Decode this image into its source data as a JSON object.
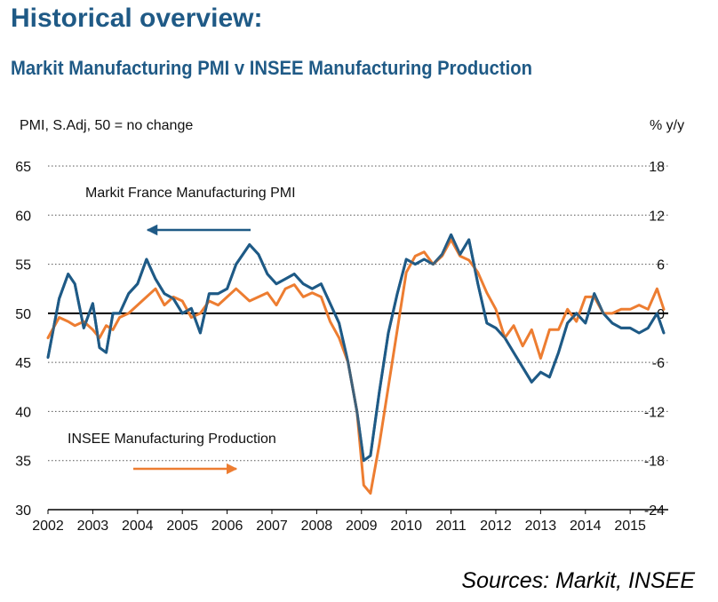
{
  "header": {
    "title": "Historical overview:",
    "subtitle": "Markit Manufacturing PMI v INSEE Manufacturing Production"
  },
  "source": "Sources: Markit, INSEE",
  "colors": {
    "pmi": "#1f5a86",
    "production": "#ed7d31",
    "zero_line": "#000000",
    "grid": "#555555"
  },
  "chart_data": {
    "type": "line",
    "title": "Markit Manufacturing PMI v INSEE Manufacturing Production",
    "left_axis_label": "PMI, S.Adj, 50 = no change",
    "right_axis_label": "% y/y",
    "x_ticks": [
      "2002",
      "2003",
      "2004",
      "2005",
      "2006",
      "2007",
      "2008",
      "2009",
      "2010",
      "2011",
      "2012",
      "2013",
      "2014",
      "2015"
    ],
    "xlim": [
      2002,
      2015.85
    ],
    "y_left": {
      "ylim": [
        30,
        65
      ],
      "ticks": [
        "65",
        "60",
        "55",
        "50",
        "45",
        "40",
        "35",
        "30"
      ]
    },
    "y_right": {
      "ylim": [
        -24,
        18
      ],
      "ticks": [
        "18",
        "12",
        "6",
        "0",
        "-6",
        "-12",
        "-18",
        "-24"
      ]
    },
    "grid": "horizontal dotted",
    "series": [
      {
        "name": "Markit France Manufacturing PMI",
        "axis": "left",
        "arrow": "left",
        "x": [
          2002.0,
          2002.25,
          2002.45,
          2002.6,
          2002.8,
          2003.0,
          2003.15,
          2003.3,
          2003.45,
          2003.6,
          2003.8,
          2004.0,
          2004.2,
          2004.4,
          2004.6,
          2004.8,
          2005.0,
          2005.2,
          2005.4,
          2005.6,
          2005.8,
          2006.0,
          2006.2,
          2006.5,
          2006.7,
          2006.9,
          2007.1,
          2007.3,
          2007.5,
          2007.7,
          2007.9,
          2008.1,
          2008.3,
          2008.5,
          2008.7,
          2008.9,
          2009.05,
          2009.2,
          2009.4,
          2009.6,
          2009.8,
          2010.0,
          2010.2,
          2010.4,
          2010.6,
          2010.8,
          2011.0,
          2011.2,
          2011.4,
          2011.6,
          2011.8,
          2012.0,
          2012.2,
          2012.4,
          2012.6,
          2012.8,
          2013.0,
          2013.2,
          2013.4,
          2013.6,
          2013.8,
          2014.0,
          2014.2,
          2014.4,
          2014.6,
          2014.8,
          2015.0,
          2015.2,
          2015.4,
          2015.6,
          2015.75
        ],
        "values": [
          45.5,
          51.5,
          54.0,
          53.0,
          48.5,
          51.0,
          46.5,
          46.0,
          50.0,
          50.0,
          52.0,
          53.0,
          55.5,
          53.5,
          52.0,
          51.5,
          50.0,
          50.5,
          48.0,
          52.0,
          52.0,
          52.5,
          55.0,
          57.0,
          56.0,
          54.0,
          53.0,
          53.5,
          54.0,
          53.0,
          52.5,
          53.0,
          51.0,
          49.0,
          45.0,
          40.0,
          35.0,
          35.5,
          42.0,
          48.0,
          52.0,
          55.5,
          55.0,
          55.5,
          55.0,
          56.0,
          58.0,
          56.0,
          57.5,
          53.0,
          49.0,
          48.5,
          47.5,
          46.0,
          44.5,
          43.0,
          44.0,
          43.5,
          46.0,
          49.0,
          50.0,
          49.0,
          52.0,
          50.0,
          49.0,
          48.5,
          48.5,
          48.0,
          48.5,
          50.0,
          48.0
        ]
      },
      {
        "name": "INSEE Manufacturing Production",
        "axis": "right",
        "arrow": "right",
        "x": [
          2002.0,
          2002.25,
          2002.45,
          2002.6,
          2002.8,
          2003.0,
          2003.15,
          2003.3,
          2003.45,
          2003.6,
          2003.8,
          2004.0,
          2004.2,
          2004.4,
          2004.6,
          2004.8,
          2005.0,
          2005.2,
          2005.4,
          2005.6,
          2005.8,
          2006.0,
          2006.2,
          2006.5,
          2006.7,
          2006.9,
          2007.1,
          2007.3,
          2007.5,
          2007.7,
          2007.9,
          2008.1,
          2008.3,
          2008.5,
          2008.7,
          2008.9,
          2009.05,
          2009.2,
          2009.4,
          2009.6,
          2009.8,
          2010.0,
          2010.2,
          2010.4,
          2010.6,
          2010.8,
          2011.0,
          2011.2,
          2011.4,
          2011.6,
          2011.8,
          2012.0,
          2012.2,
          2012.4,
          2012.6,
          2012.8,
          2013.0,
          2013.2,
          2013.4,
          2013.6,
          2013.8,
          2014.0,
          2014.2,
          2014.4,
          2014.6,
          2014.8,
          2015.0,
          2015.2,
          2015.4,
          2015.6,
          2015.75
        ],
        "values": [
          -3.0,
          -0.5,
          -1.0,
          -1.5,
          -1.0,
          -2.0,
          -3.0,
          -1.5,
          -2.0,
          -0.5,
          0.0,
          1.0,
          2.0,
          3.0,
          1.0,
          2.0,
          1.5,
          -0.5,
          0.0,
          1.5,
          1.0,
          2.0,
          3.0,
          1.5,
          2.0,
          2.5,
          1.0,
          3.0,
          3.5,
          2.0,
          2.5,
          2.0,
          -1.0,
          -3.0,
          -6.0,
          -12.0,
          -21.0,
          -22.0,
          -16.0,
          -9.0,
          -2.0,
          5.0,
          7.0,
          7.5,
          6.0,
          7.0,
          9.0,
          7.0,
          6.5,
          5.0,
          2.5,
          0.5,
          -3.0,
          -1.5,
          -4.0,
          -2.0,
          -5.5,
          -2.0,
          -2.0,
          0.5,
          -1.0,
          2.0,
          2.0,
          0.0,
          0.0,
          0.5,
          0.5,
          1.0,
          0.5,
          3.0,
          0.5
        ]
      }
    ],
    "annotations": [
      "Markit France Manufacturing PMI",
      "INSEE Manufacturing Production"
    ]
  }
}
